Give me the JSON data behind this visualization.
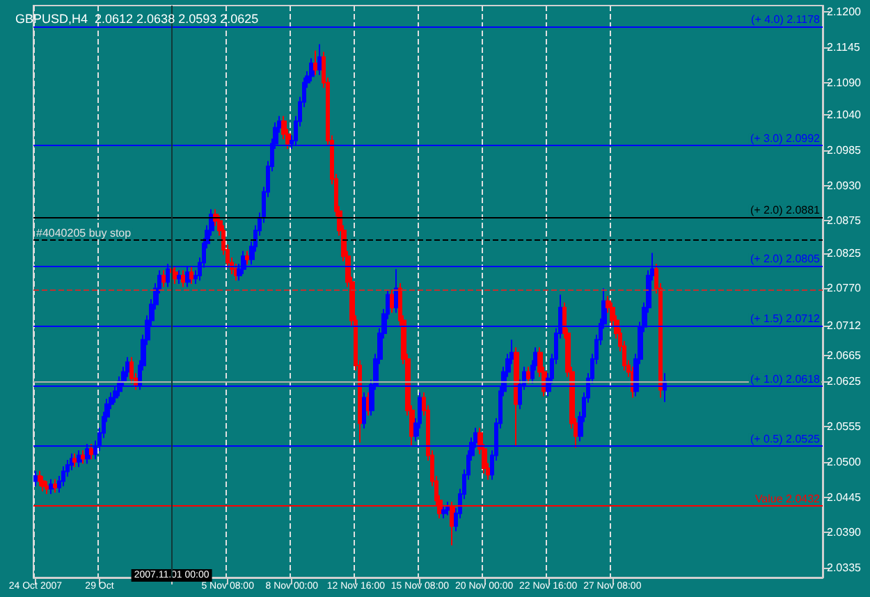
{
  "chart_data": {
    "type": "candlestick",
    "title": "GBPUSD,H4  2.0612 2.0638 2.0593 2.0625",
    "categories": [
      "24 Oct 2007",
      null,
      null,
      null,
      null,
      null,
      null,
      null,
      null,
      null,
      null,
      null,
      null,
      null,
      null,
      null,
      "29 Oct",
      null,
      null,
      null,
      null,
      null,
      null,
      null,
      null,
      null,
      null,
      null,
      null,
      null,
      null,
      null,
      null,
      null,
      "2007.11.01 00:00",
      null,
      null,
      null,
      null,
      null,
      null,
      null,
      null,
      null,
      null,
      null,
      null,
      null,
      "5 Nov 08:00",
      null,
      null,
      null,
      null,
      null,
      null,
      null,
      null,
      null,
      null,
      null,
      null,
      null,
      null,
      null,
      "8 Nov 00:00",
      null,
      null,
      null,
      null,
      null,
      null,
      null,
      null,
      null,
      null,
      null,
      null,
      null,
      null,
      null,
      "12 Nov 16:00",
      null,
      null,
      null,
      null,
      null,
      null,
      null,
      null,
      null,
      null,
      null,
      null,
      null,
      null,
      null,
      "15 Nov 08:00",
      null,
      null,
      null,
      null,
      null,
      null,
      null,
      null,
      null,
      null,
      null,
      null,
      null,
      null,
      null,
      "20 Nov 00:00",
      null,
      null,
      null,
      null,
      null,
      null,
      null,
      null,
      null,
      null,
      null,
      null,
      null,
      null,
      null,
      "22 Nov 16:00",
      null,
      null,
      null,
      null,
      null,
      null,
      null,
      null,
      null,
      null,
      null,
      null,
      null,
      null,
      null,
      "27 Nov 08:00",
      null,
      null,
      null,
      null,
      null,
      null,
      null,
      null,
      null,
      null,
      null,
      null,
      null,
      null,
      null,
      null,
      null,
      null,
      null,
      null,
      null,
      null,
      null,
      null,
      null,
      null,
      null,
      null,
      null,
      null,
      null,
      null,
      null,
      null,
      null,
      null,
      null,
      null,
      null,
      null,
      null,
      null,
      null,
      null,
      null,
      null,
      null,
      null,
      null,
      null,
      null,
      null
    ],
    "ohlc": [
      [
        2.047,
        2.0486,
        2.0462,
        2.0478
      ],
      [
        2.0478,
        2.0486,
        2.0462,
        2.047
      ],
      [
        2.047,
        2.0478,
        2.0454,
        2.0462
      ],
      [
        2.0462,
        2.047,
        2.045,
        2.0458
      ],
      [
        2.0458,
        2.0473,
        2.045,
        2.0465
      ],
      [
        2.0465,
        2.0473,
        2.0452,
        2.046
      ],
      [
        2.046,
        2.0478,
        2.0452,
        2.047
      ],
      [
        2.047,
        2.0493,
        2.0462,
        2.0485
      ],
      [
        2.0485,
        2.0503,
        2.0477,
        2.0495
      ],
      [
        2.0495,
        2.0513,
        2.0487,
        2.0505
      ],
      [
        2.0505,
        2.0513,
        2.0492,
        2.05
      ],
      [
        2.05,
        2.0518,
        2.0492,
        2.051
      ],
      [
        2.051,
        2.0518,
        2.0497,
        2.0505
      ],
      [
        2.0505,
        2.0528,
        2.0497,
        2.052
      ],
      [
        2.052,
        2.0528,
        2.0504,
        2.0512
      ],
      [
        2.0512,
        2.0533,
        2.0504,
        2.0525
      ],
      [
        2.0525,
        2.0553,
        2.0517,
        2.0545
      ],
      [
        2.0545,
        2.0578,
        2.0537,
        2.057
      ],
      [
        2.057,
        2.0598,
        2.0562,
        2.059
      ],
      [
        2.059,
        2.0608,
        2.0582,
        2.06
      ],
      [
        2.06,
        2.0618,
        2.0592,
        2.061
      ],
      [
        2.061,
        2.0633,
        2.0602,
        2.0625
      ],
      [
        2.0625,
        2.0648,
        2.0617,
        2.064
      ],
      [
        2.064,
        2.0663,
        2.0632,
        2.0655
      ],
      [
        2.0655,
        2.0663,
        2.0622,
        2.063
      ],
      [
        2.063,
        2.0638,
        2.0612,
        2.062
      ],
      [
        2.062,
        2.0658,
        2.0612,
        2.065
      ],
      [
        2.065,
        2.0698,
        2.0642,
        2.069
      ],
      [
        2.069,
        2.0728,
        2.0682,
        2.072
      ],
      [
        2.072,
        2.0753,
        2.0712,
        2.0745
      ],
      [
        2.0745,
        2.0778,
        2.0737,
        2.077
      ],
      [
        2.077,
        2.0798,
        2.0762,
        2.079
      ],
      [
        2.079,
        2.0798,
        2.0772,
        2.078
      ],
      [
        2.078,
        2.0808,
        2.0772,
        2.08
      ],
      [
        2.08,
        2.0808,
        2.0787,
        2.0795
      ],
      [
        2.0795,
        2.0803,
        2.0777,
        2.0785
      ],
      [
        2.0785,
        2.0798,
        2.0777,
        2.079
      ],
      [
        2.079,
        2.0798,
        2.0772,
        2.078
      ],
      [
        2.078,
        2.0803,
        2.0772,
        2.0795
      ],
      [
        2.0795,
        2.0803,
        2.0777,
        2.0785
      ],
      [
        2.0785,
        2.0798,
        2.0777,
        2.079
      ],
      [
        2.079,
        2.0818,
        2.0782,
        2.081
      ],
      [
        2.081,
        2.0848,
        2.0802,
        2.084
      ],
      [
        2.084,
        2.0868,
        2.0832,
        2.086
      ],
      [
        2.086,
        2.0893,
        2.0852,
        2.0885
      ],
      [
        2.0885,
        2.0893,
        2.0867,
        2.0875
      ],
      [
        2.0875,
        2.0883,
        2.0852,
        2.086
      ],
      [
        2.086,
        2.0868,
        2.0822,
        2.083
      ],
      [
        2.083,
        2.0838,
        2.0802,
        2.081
      ],
      [
        2.081,
        2.0818,
        2.0792,
        2.08
      ],
      [
        2.08,
        2.0808,
        2.0782,
        2.079
      ],
      [
        2.079,
        2.0808,
        2.0782,
        2.08
      ],
      [
        2.08,
        2.0828,
        2.0792,
        2.082
      ],
      [
        2.082,
        2.0828,
        2.0807,
        2.0815
      ],
      [
        2.0815,
        2.0843,
        2.0807,
        2.0835
      ],
      [
        2.0835,
        2.0868,
        2.0827,
        2.086
      ],
      [
        2.086,
        2.0888,
        2.0852,
        2.088
      ],
      [
        2.088,
        2.0928,
        2.0872,
        2.092
      ],
      [
        2.092,
        2.0968,
        2.0912,
        2.096
      ],
      [
        2.096,
        2.1003,
        2.0952,
        2.0995
      ],
      [
        2.0995,
        2.1028,
        2.0987,
        2.102
      ],
      [
        2.102,
        2.1038,
        2.1012,
        2.103
      ],
      [
        2.103,
        2.1038,
        2.1002,
        2.101
      ],
      [
        2.101,
        2.1018,
        2.0987,
        2.0995
      ],
      [
        2.0995,
        2.1008,
        2.0987,
        2.1
      ],
      [
        2.1,
        2.1038,
        2.0992,
        2.103
      ],
      [
        2.103,
        2.1068,
        2.1022,
        2.106
      ],
      [
        2.106,
        2.1098,
        2.1052,
        2.109
      ],
      [
        2.109,
        2.1108,
        2.1082,
        2.11
      ],
      [
        2.11,
        2.1128,
        2.1092,
        2.112
      ],
      [
        2.112,
        2.114,
        2.1102,
        2.111
      ],
      [
        2.111,
        2.115,
        2.1102,
        2.113
      ],
      [
        2.113,
        2.1138,
        2.1082,
        2.109
      ],
      [
        2.109,
        2.1098,
        2.0992,
        2.1
      ],
      [
        2.1,
        2.1008,
        2.0932,
        2.094
      ],
      [
        2.094,
        2.0948,
        2.0882,
        2.089
      ],
      [
        2.089,
        2.0898,
        2.0852,
        2.086
      ],
      [
        2.086,
        2.0868,
        2.0812,
        2.082
      ],
      [
        2.082,
        2.0828,
        2.0772,
        2.078
      ],
      [
        2.078,
        2.0788,
        2.0712,
        2.072
      ],
      [
        2.072,
        2.0728,
        2.0642,
        2.065
      ],
      [
        2.065,
        2.0658,
        2.053,
        2.056
      ],
      [
        2.056,
        2.0608,
        2.0552,
        2.06
      ],
      [
        2.06,
        2.0608,
        2.0572,
        2.058
      ],
      [
        2.058,
        2.0628,
        2.0572,
        2.062
      ],
      [
        2.062,
        2.0668,
        2.0612,
        2.066
      ],
      [
        2.066,
        2.0708,
        2.0652,
        2.07
      ],
      [
        2.07,
        2.0738,
        2.0692,
        2.073
      ],
      [
        2.073,
        2.0768,
        2.0722,
        2.076
      ],
      [
        2.076,
        2.0768,
        2.0732,
        2.074
      ],
      [
        2.074,
        2.08,
        2.0732,
        2.077
      ],
      [
        2.077,
        2.0778,
        2.0712,
        2.072
      ],
      [
        2.072,
        2.0728,
        2.0652,
        2.066
      ],
      [
        2.066,
        2.0668,
        2.0572,
        2.058
      ],
      [
        2.058,
        2.0588,
        2.0525,
        2.054
      ],
      [
        2.054,
        2.0568,
        2.0532,
        2.056
      ],
      [
        2.056,
        2.0608,
        2.0552,
        2.06
      ],
      [
        2.06,
        2.0608,
        2.0572,
        2.058
      ],
      [
        2.058,
        2.0588,
        2.0502,
        2.051
      ],
      [
        2.051,
        2.0518,
        2.0462,
        2.047
      ],
      [
        2.047,
        2.0478,
        2.0432,
        2.044
      ],
      [
        2.044,
        2.0448,
        2.0412,
        2.042
      ],
      [
        2.042,
        2.0433,
        2.0412,
        2.0425
      ],
      [
        2.0425,
        2.0438,
        2.0417,
        2.043
      ],
      [
        2.043,
        2.0438,
        2.037,
        2.04
      ],
      [
        2.04,
        2.0428,
        2.0392,
        2.042
      ],
      [
        2.042,
        2.0458,
        2.0412,
        2.045
      ],
      [
        2.045,
        2.0488,
        2.0442,
        2.048
      ],
      [
        2.048,
        2.0518,
        2.0472,
        2.051
      ],
      [
        2.051,
        2.0538,
        2.0502,
        2.053
      ],
      [
        2.053,
        2.0553,
        2.0522,
        2.0545
      ],
      [
        2.0545,
        2.0553,
        2.0512,
        2.052
      ],
      [
        2.052,
        2.0528,
        2.0482,
        2.049
      ],
      [
        2.049,
        2.0498,
        2.0472,
        2.048
      ],
      [
        2.048,
        2.0518,
        2.0472,
        2.051
      ],
      [
        2.051,
        2.0568,
        2.0502,
        2.056
      ],
      [
        2.056,
        2.0618,
        2.0552,
        2.061
      ],
      [
        2.061,
        2.0648,
        2.0602,
        2.064
      ],
      [
        2.064,
        2.0668,
        2.0632,
        2.066
      ],
      [
        2.066,
        2.069,
        2.0652,
        2.067
      ],
      [
        2.067,
        2.0678,
        2.0525,
        2.059
      ],
      [
        2.059,
        2.0628,
        2.0582,
        2.062
      ],
      [
        2.062,
        2.0648,
        2.0612,
        2.064
      ],
      [
        2.064,
        2.0648,
        2.0622,
        2.063
      ],
      [
        2.063,
        2.0658,
        2.0622,
        2.065
      ],
      [
        2.065,
        2.0678,
        2.0642,
        2.067
      ],
      [
        2.067,
        2.0678,
        2.0632,
        2.064
      ],
      [
        2.064,
        2.0648,
        2.0602,
        2.061
      ],
      [
        2.061,
        2.0638,
        2.0602,
        2.063
      ],
      [
        2.063,
        2.0668,
        2.0622,
        2.066
      ],
      [
        2.066,
        2.0708,
        2.0652,
        2.07
      ],
      [
        2.07,
        2.076,
        2.0692,
        2.074
      ],
      [
        2.074,
        2.0748,
        2.0692,
        2.07
      ],
      [
        2.07,
        2.0708,
        2.0632,
        2.064
      ],
      [
        2.064,
        2.0648,
        2.0552,
        2.056
      ],
      [
        2.056,
        2.0568,
        2.0522,
        2.054
      ],
      [
        2.054,
        2.0578,
        2.0532,
        2.057
      ],
      [
        2.057,
        2.0608,
        2.0562,
        2.06
      ],
      [
        2.06,
        2.0638,
        2.0592,
        2.063
      ],
      [
        2.063,
        2.0668,
        2.0622,
        2.066
      ],
      [
        2.066,
        2.0698,
        2.0652,
        2.069
      ],
      [
        2.069,
        2.0723,
        2.0682,
        2.0715
      ],
      [
        2.0715,
        2.077,
        2.0707,
        2.075
      ],
      [
        2.075,
        2.0758,
        2.0732,
        2.074
      ],
      [
        2.074,
        2.0748,
        2.0712,
        2.072
      ],
      [
        2.072,
        2.0728,
        2.0692,
        2.07
      ],
      [
        2.07,
        2.0708,
        2.0672,
        2.068
      ],
      [
        2.068,
        2.0688,
        2.0642,
        2.065
      ],
      [
        2.065,
        2.0658,
        2.0632,
        2.064
      ],
      [
        2.064,
        2.0648,
        2.06,
        2.061
      ],
      [
        2.061,
        2.0668,
        2.0602,
        2.066
      ],
      [
        2.066,
        2.0718,
        2.0652,
        2.071
      ],
      [
        2.071,
        2.0748,
        2.0702,
        2.074
      ],
      [
        2.074,
        2.0798,
        2.0732,
        2.079
      ],
      [
        2.079,
        2.0825,
        2.0782,
        2.08
      ],
      [
        2.08,
        2.0808,
        2.0762,
        2.077
      ],
      [
        2.077,
        2.0778,
        2.06,
        2.0612
      ],
      [
        2.0612,
        2.0638,
        2.0593,
        2.0625
      ],
      null,
      null,
      null,
      null,
      null,
      null,
      null,
      null,
      null,
      null,
      null,
      null,
      null,
      null,
      null,
      null,
      null,
      null,
      null,
      null,
      null,
      null,
      null,
      null,
      null,
      null,
      null,
      null,
      null,
      null,
      null,
      null,
      null,
      null,
      null,
      null,
      null,
      null,
      null
    ],
    "colors": [
      "#0000ff",
      "#ff0000",
      "#ff0000",
      "#ff0000",
      "#0000ff",
      "#ff0000",
      "#0000ff",
      "#0000ff",
      "#0000ff",
      "#0000ff",
      "#ff0000",
      "#0000ff",
      "#ff0000",
      "#0000ff",
      "#ff0000",
      "#0000ff",
      "#0000ff",
      "#0000ff",
      "#0000ff",
      "#0000ff",
      "#0000ff",
      "#0000ff",
      "#0000ff",
      "#0000ff",
      "#ff0000",
      "#ff0000",
      "#0000ff",
      "#0000ff",
      "#0000ff",
      "#0000ff",
      "#0000ff",
      "#0000ff",
      "#ff0000",
      "#0000ff",
      "#ff0000",
      "#ff0000",
      "#0000ff",
      "#ff0000",
      "#0000ff",
      "#ff0000",
      "#0000ff",
      "#0000ff",
      "#0000ff",
      "#0000ff",
      "#0000ff",
      "#ff0000",
      "#ff0000",
      "#ff0000",
      "#ff0000",
      "#ff0000",
      "#ff0000",
      "#0000ff",
      "#0000ff",
      "#ff0000",
      "#0000ff",
      "#0000ff",
      "#0000ff",
      "#0000ff",
      "#0000ff",
      "#0000ff",
      "#0000ff",
      "#0000ff",
      "#ff0000",
      "#ff0000",
      "#0000ff",
      "#0000ff",
      "#0000ff",
      "#0000ff",
      "#0000ff",
      "#0000ff",
      "#ff0000",
      "#0000ff",
      "#ff0000",
      "#ff0000",
      "#ff0000",
      "#ff0000",
      "#ff0000",
      "#ff0000",
      "#ff0000",
      "#ff0000",
      "#ff0000",
      "#ff0000",
      "#0000ff",
      "#ff0000",
      "#0000ff",
      "#0000ff",
      "#0000ff",
      "#0000ff",
      "#0000ff",
      "#ff0000",
      "#0000ff",
      "#ff0000",
      "#ff0000",
      "#ff0000",
      "#ff0000",
      "#0000ff",
      "#0000ff",
      "#ff0000",
      "#ff0000",
      "#ff0000",
      "#ff0000",
      "#ff0000",
      "#0000ff",
      "#0000ff",
      "#ff0000",
      "#0000ff",
      "#0000ff",
      "#0000ff",
      "#0000ff",
      "#0000ff",
      "#0000ff",
      "#ff0000",
      "#ff0000",
      "#ff0000",
      "#0000ff",
      "#0000ff",
      "#0000ff",
      "#0000ff",
      "#0000ff",
      "#0000ff",
      "#ff0000",
      "#0000ff",
      "#0000ff",
      "#ff0000",
      "#0000ff",
      "#0000ff",
      "#ff0000",
      "#ff0000",
      "#0000ff",
      "#0000ff",
      "#0000ff",
      "#0000ff",
      "#ff0000",
      "#ff0000",
      "#ff0000",
      "#ff0000",
      "#0000ff",
      "#0000ff",
      "#0000ff",
      "#0000ff",
      "#0000ff",
      "#0000ff",
      "#0000ff",
      "#ff0000",
      "#ff0000",
      "#ff0000",
      "#ff0000",
      "#ff0000",
      "#ff0000",
      "#ff0000",
      "#0000ff",
      "#0000ff",
      "#0000ff",
      "#0000ff",
      "#0000ff",
      "#ff0000",
      "#ff0000",
      "#0000ff",
      null,
      null,
      null,
      null,
      null,
      null,
      null,
      null,
      null,
      null,
      null,
      null,
      null,
      null,
      null,
      null,
      null,
      null,
      null,
      null,
      null,
      null,
      null,
      null,
      null,
      null,
      null,
      null,
      null,
      null,
      null,
      null,
      null,
      null,
      null,
      null,
      null,
      null,
      null
    ],
    "ylim": [
      2.032,
      2.121
    ],
    "yticks": [
      {
        "value": 2.0335,
        "label": "2.0335"
      },
      {
        "value": 2.039,
        "label": "2.0390"
      },
      {
        "value": 2.0445,
        "label": "2.0445"
      },
      {
        "value": 2.05,
        "label": "2.0500"
      },
      {
        "value": 2.0555,
        "label": "2.0555"
      },
      {
        "value": 2.0625,
        "label": "2.0625"
      },
      {
        "value": 2.0665,
        "label": "2.0665"
      },
      {
        "value": 2.0712,
        "label": "2.0712"
      },
      {
        "value": 2.077,
        "label": "2.0770"
      },
      {
        "value": 2.0825,
        "label": "2.0825"
      },
      {
        "value": 2.0875,
        "label": "2.0875"
      },
      {
        "value": 2.093,
        "label": "2.0930"
      },
      {
        "value": 2.0985,
        "label": "2.0985"
      },
      {
        "value": 2.104,
        "label": "2.1040"
      },
      {
        "value": 2.109,
        "label": "2.1090"
      },
      {
        "value": 2.1145,
        "label": "2.1145"
      },
      {
        "value": 2.12,
        "label": "2.1200"
      }
    ],
    "grid": "x",
    "ref_lines": [
      {
        "axis": "y",
        "value": 2.1178,
        "label": "(+ 4.0) 2.1178",
        "color": "#0000ff",
        "line_style": "solid"
      },
      {
        "axis": "y",
        "value": 2.0992,
        "label": "(+ 3.0) 2.0992",
        "color": "#0000ff",
        "line_style": "solid"
      },
      {
        "axis": "y",
        "value": 2.0881,
        "label": "(+ 2.0) 2.0881",
        "color": "#000000",
        "line_style": "solid"
      },
      {
        "axis": "y",
        "value": 2.0845,
        "label": "#4040205 buy stop",
        "color": "#000000",
        "line_style": "dashed"
      },
      {
        "axis": "y",
        "value": 2.0805,
        "label": "(+ 2.0) 2.0805",
        "color": "#0000ff",
        "line_style": "solid"
      },
      {
        "axis": "y",
        "value": 2.0768,
        "color": "#c03030",
        "line_style": "dashed"
      },
      {
        "axis": "y",
        "value": 2.0712,
        "label": "(+ 1.5) 2.0712",
        "color": "#0000ff",
        "line_style": "solid"
      },
      {
        "axis": "y",
        "value": 2.0625,
        "color": "#b0b0b0",
        "line_style": "solid"
      },
      {
        "axis": "y",
        "value": 2.0618,
        "label": "(+ 1.0) 2.0618",
        "color": "#0000ff",
        "line_style": "solid"
      },
      {
        "axis": "y",
        "value": 2.0525,
        "label": "(+ 0.5) 2.0525",
        "color": "#0000ff",
        "line_style": "solid"
      },
      {
        "axis": "y",
        "value": 2.0432,
        "label": "Value 2.0432",
        "color": "#ff0000",
        "line_style": "solid"
      },
      {
        "axis": "x",
        "value": "2007.11.01 00:00",
        "color": "#103838",
        "line_style": "solid"
      }
    ]
  }
}
